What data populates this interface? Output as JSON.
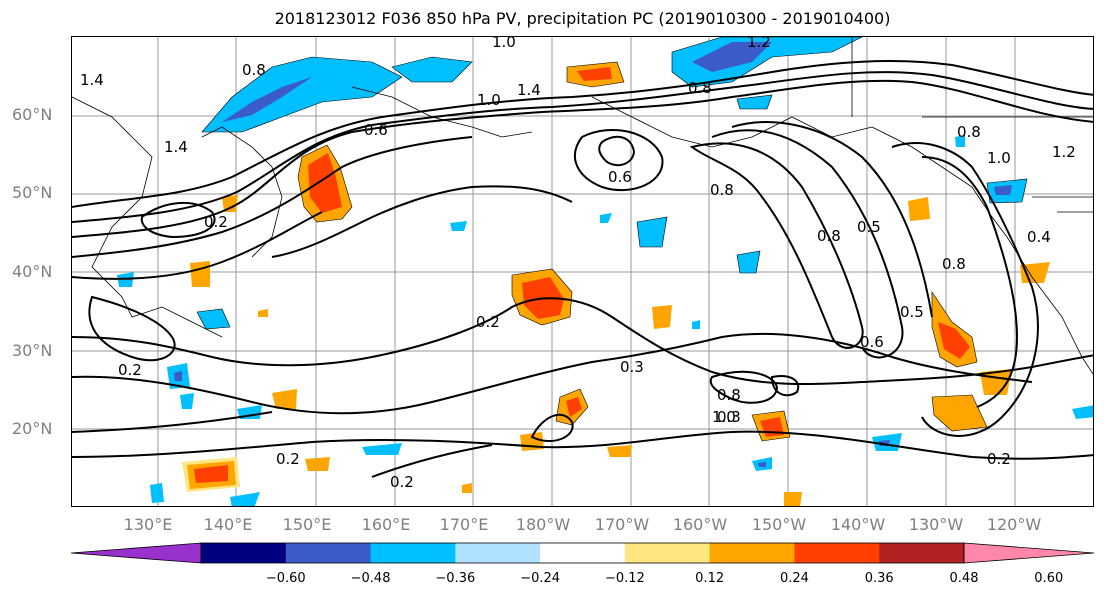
{
  "title": "2018123012 F036 850 hPa PV, precipitation PC (2019010300 - 2019010400)",
  "lat_labels": [
    "60°N",
    "50°N",
    "40°N",
    "30°N",
    "20°N"
  ],
  "lon_labels": [
    "130°E",
    "140°E",
    "150°E",
    "160°E",
    "170°E",
    "180°W",
    "170°W",
    "160°W",
    "150°W",
    "140°W",
    "130°W",
    "120°W"
  ],
  "contour_labels": [
    "1.4",
    "0.8",
    "1.0",
    "1.0",
    "1.4",
    "0.6",
    "0.6",
    "1.2",
    "0.8",
    "0.8",
    "0.8",
    "0.8",
    "1.0",
    "1.2",
    "0.4",
    "1.4",
    "0.2",
    "0.2",
    "0.3",
    "0.3",
    "0.2",
    "0.2",
    "0.2",
    "0.5",
    "0.5",
    "0.6",
    "0.8",
    "0.8",
    "1.0",
    "0.2"
  ],
  "colorbar": {
    "colors": [
      "#9932cc",
      "#000080",
      "#3a5bc8",
      "#00bfff",
      "#b0e2ff",
      "#ffffff",
      "#ffe680",
      "#ffa500",
      "#ff4000",
      "#b22222",
      "#ff88aa"
    ],
    "ticks": [
      "−0.60",
      "−0.48",
      "−0.36",
      "−0.24",
      "−0.12",
      "0.12",
      "0.24",
      "0.36",
      "0.48",
      "0.60"
    ]
  }
}
